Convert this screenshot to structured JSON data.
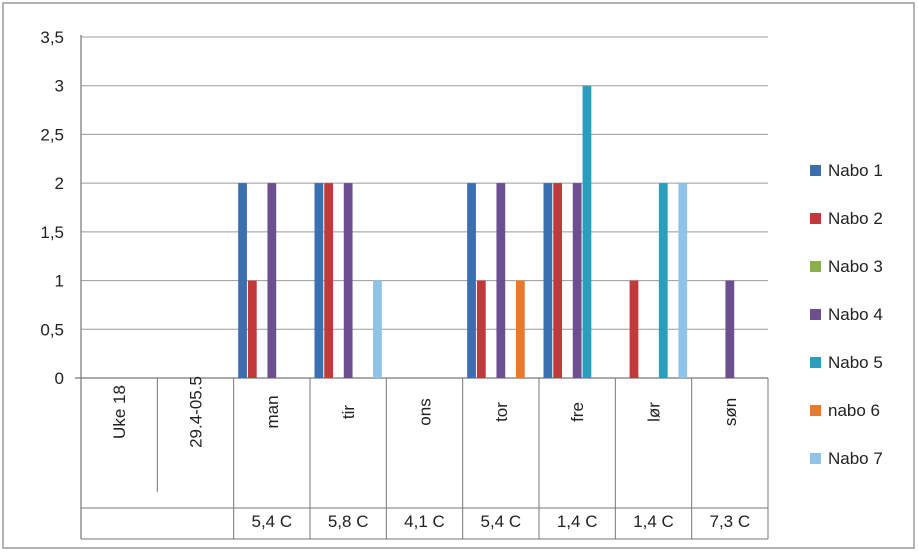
{
  "chart_data": {
    "type": "bar",
    "categories": [
      "Uke 18",
      "29.4-05.5",
      "man",
      "tir",
      "ons",
      "tor",
      "fre",
      "lør",
      "søn"
    ],
    "sub_labels": [
      "",
      "",
      "5,4 C",
      "5,8 C",
      "4,1 C",
      "5,4 C",
      "1,4 C",
      "1,4 C",
      "7,3 C"
    ],
    "series": [
      {
        "name": "Nabo 1",
        "color": "#3b6fb0",
        "values": [
          0,
          0,
          2,
          2,
          0,
          2,
          2,
          0,
          0
        ]
      },
      {
        "name": "Nabo 2",
        "color": "#c0393b",
        "values": [
          0,
          0,
          1,
          2,
          0,
          1,
          2,
          1,
          0
        ]
      },
      {
        "name": "Nabo 3",
        "color": "#8bb04a",
        "values": [
          0,
          0,
          0,
          0,
          0,
          0,
          0,
          0,
          0
        ]
      },
      {
        "name": "Nabo 4",
        "color": "#6c4f8f",
        "values": [
          0,
          0,
          2,
          2,
          0,
          2,
          2,
          0,
          1
        ]
      },
      {
        "name": "Nabo 5",
        "color": "#2b9dbd",
        "values": [
          0,
          0,
          0,
          0,
          0,
          0,
          3,
          2,
          0
        ]
      },
      {
        "name": "nabo 6",
        "color": "#e67a30",
        "values": [
          0,
          0,
          0,
          0,
          0,
          1,
          0,
          0,
          0
        ]
      },
      {
        "name": "Nabo 7",
        "color": "#8fc3e8",
        "values": [
          0,
          0,
          0,
          1,
          0,
          0,
          0,
          2,
          0
        ]
      }
    ],
    "y_ticks": [
      "0",
      "0,5",
      "1",
      "1,5",
      "2",
      "2,5",
      "3",
      "3,5"
    ],
    "ylim": [
      0,
      3.5
    ],
    "grid": true,
    "legend_position": "right"
  }
}
